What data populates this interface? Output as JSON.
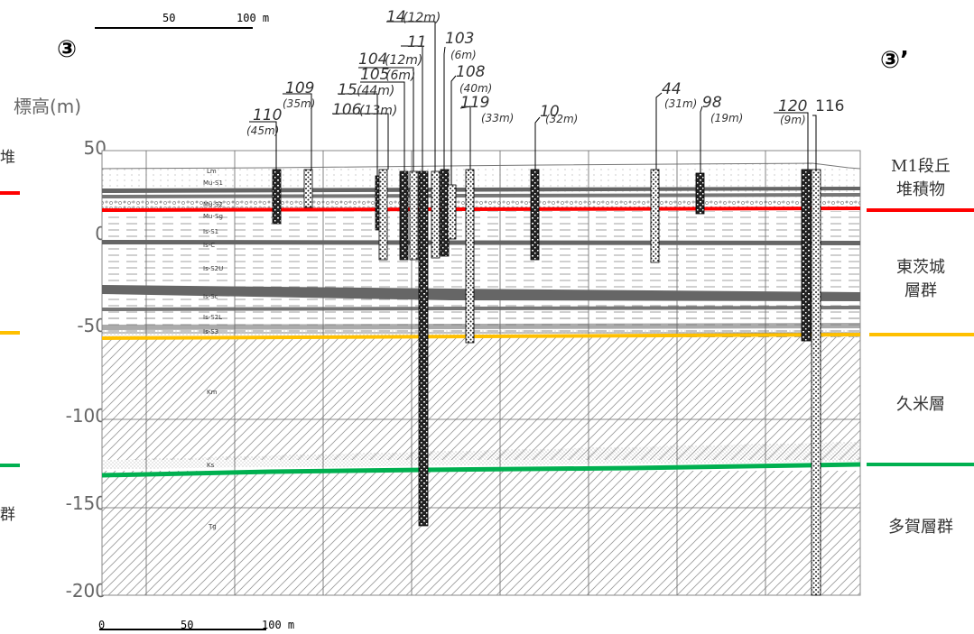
{
  "section": {
    "start": "③",
    "end": "③’"
  },
  "y_axis": {
    "title": "標高(m)",
    "ticks": [
      "50",
      "0",
      "-50",
      "-100",
      "-150",
      "-200"
    ]
  },
  "scale_bar": {
    "top": {
      "labels": [
        "50",
        "100 m"
      ]
    },
    "bottom": {
      "labels": [
        "0",
        "50",
        "100 m"
      ]
    }
  },
  "units_right": [
    {
      "text": "M1段丘\n堆積物",
      "color": "#ff0000"
    },
    {
      "text": "東茨城\n層群",
      "color": "#ffc000"
    },
    {
      "text": "久米層",
      "color": "#00b050"
    },
    {
      "text": "多賀層群",
      "color": "#00b050"
    }
  ],
  "units_left_partial": [
    {
      "text": "堆"
    },
    {
      "text": "群"
    }
  ],
  "layer_labels": [
    "Lm",
    "Mu-S1",
    "Mu-S2",
    "Mu-Sg",
    "Is-S1",
    "Is-C",
    "Is-S2U",
    "Is-Sc",
    "Is-S2L",
    "Is-S3",
    "Km",
    "Ks",
    "Tg"
  ],
  "boreholes": [
    {
      "name": "110",
      "depth": "(45m)"
    },
    {
      "name": "109",
      "depth": "(35m)"
    },
    {
      "name": "106",
      "depth": "(13m)"
    },
    {
      "name": "15",
      "depth": "(44m)"
    },
    {
      "name": "105",
      "depth": "(6m)"
    },
    {
      "name": "104",
      "depth": "(12m)"
    },
    {
      "name": "11",
      "depth": ""
    },
    {
      "name": "14",
      "depth": "(12m)"
    },
    {
      "name": "103",
      "depth": "(6m)"
    },
    {
      "name": "108",
      "depth": "(40m)"
    },
    {
      "name": "119",
      "depth": "(33m)"
    },
    {
      "name": "10",
      "depth": "(32m)"
    },
    {
      "name": "44",
      "depth": "(31m)"
    },
    {
      "name": "98",
      "depth": "(19m)"
    },
    {
      "name": "120",
      "depth": "(9m)"
    },
    {
      "name": "116",
      "depth": ""
    }
  ],
  "colors": {
    "m1_boundary": "#ff0000",
    "ibaraki_boundary": "#ffc000",
    "kume_boundary": "#00b050"
  }
}
